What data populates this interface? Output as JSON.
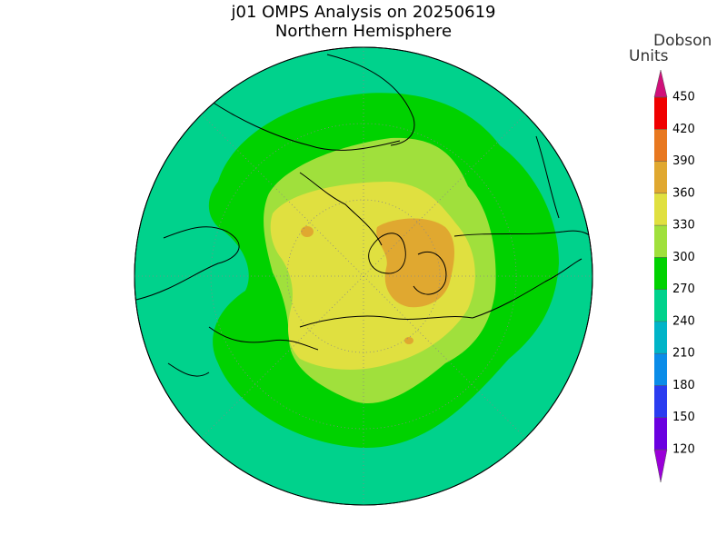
{
  "header": {
    "title": "j01 OMPS Analysis on 20250619",
    "subtitle": "Northern Hemisphere"
  },
  "colorbar": {
    "label": [
      "Dobson",
      "Units"
    ],
    "ticks": [
      120,
      150,
      180,
      210,
      240,
      270,
      300,
      330,
      360,
      390,
      420,
      450
    ],
    "colors": [
      "#9a00d8",
      "#6a00e0",
      "#2a3cf0",
      "#0a8ce8",
      "#00b4c8",
      "#00d28c",
      "#00d200",
      "#a0e03c",
      "#e0e040",
      "#e0a830",
      "#e87820",
      "#f00000",
      "#d0107a"
    ]
  }
}
